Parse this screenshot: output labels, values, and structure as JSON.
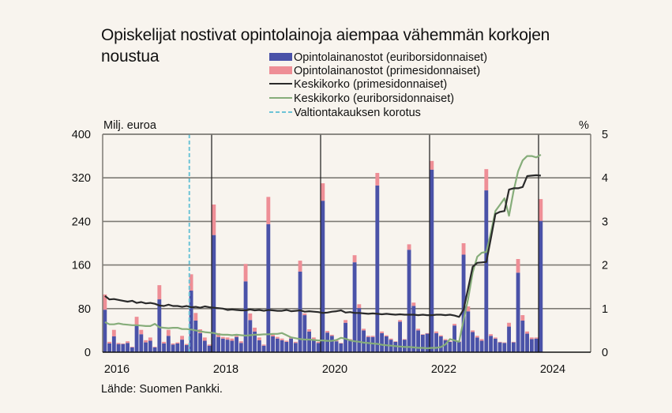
{
  "colors": {
    "background": "#F8F4EE",
    "euribor_bar": "#4A52A8",
    "prime_bar": "#EE8E96",
    "prime_rate_line": "#2a2a2a",
    "euribor_rate_line": "#86AD7A",
    "guarantee_line": "#6CC3D6",
    "grid": "#7d7a74"
  },
  "chart_data": {
    "type": "bar",
    "title_lines": [
      "Opiskelijat nostivat opintolainoja aiempaa vähemmän korkojen",
      "noustua"
    ],
    "ylabel_left": "Milj. euroa",
    "ylabel_right": "%",
    "ylim_left": [
      0,
      400
    ],
    "ylim_right": [
      0,
      5
    ],
    "yticks_left": [
      "0",
      "80",
      "160",
      "240",
      "320",
      "400"
    ],
    "yticks_right": [
      "0",
      "1",
      "2",
      "3",
      "4",
      "5"
    ],
    "xticks": [
      "2016",
      "2018",
      "2020",
      "2022",
      "2024"
    ],
    "x_start": "2016-01",
    "x_range_months": 108,
    "grid": true,
    "source": "Lähde: Suomen Pankki.",
    "legend": [
      {
        "label": "Opintolainanostot (euriborsidonnaiset)",
        "kind": "bar",
        "color_key": "euribor_bar"
      },
      {
        "label": "Opintolainanostot (primesidonnaiset)",
        "kind": "bar",
        "color_key": "prime_bar"
      },
      {
        "label": "Keskikorko (primesidonnaiset)",
        "kind": "line",
        "color_key": "prime_rate_line"
      },
      {
        "label": "Keskikorko (euriborsidonnaiset)",
        "kind": "line",
        "color_key": "euribor_rate_line"
      },
      {
        "label": "Valtiontakauksen korotus",
        "kind": "dashed",
        "color_key": "guarantee_line"
      }
    ],
    "guarantee_raise_month": "2017-08",
    "series": [
      {
        "name": "Opintolainanostot (euriborsidonnaiset)",
        "axis": "left",
        "type": "stacked-bar",
        "values": [
          78,
          16,
          29,
          15,
          15,
          17,
          9,
          49,
          33,
          18,
          21,
          9,
          97,
          16,
          30,
          14,
          16,
          23,
          13,
          113,
          58,
          35,
          21,
          12,
          215,
          28,
          25,
          23,
          21,
          28,
          17,
          130,
          59,
          38,
          22,
          12,
          235,
          29,
          25,
          22,
          19,
          25,
          17,
          148,
          68,
          38,
          24,
          17,
          278,
          36,
          30,
          20,
          16,
          54,
          22,
          165,
          81,
          40,
          28,
          28,
          306,
          35,
          29,
          23,
          19,
          56,
          23,
          188,
          85,
          40,
          32,
          34,
          335,
          35,
          29,
          22,
          19,
          49,
          19,
          179,
          75,
          37,
          27,
          21,
          297,
          30,
          25,
          18,
          17,
          47,
          18,
          146,
          58,
          34,
          24,
          25,
          241
        ]
      },
      {
        "name": "Opintolainanostot (primesidonnaiset)",
        "axis": "left",
        "type": "stacked-bar",
        "values": [
          28,
          3,
          12,
          2,
          1,
          3,
          1,
          16,
          8,
          4,
          6,
          1,
          26,
          3,
          11,
          2,
          2,
          7,
          2,
          30,
          14,
          7,
          6,
          2,
          56,
          7,
          3,
          4,
          4,
          2,
          3,
          32,
          12,
          7,
          5,
          2,
          50,
          3,
          3,
          3,
          2,
          3,
          2,
          20,
          3,
          4,
          3,
          2,
          32,
          3,
          2,
          2,
          1,
          5,
          2,
          13,
          7,
          3,
          2,
          2,
          23,
          3,
          2,
          2,
          1,
          3,
          1,
          10,
          6,
          3,
          1,
          1,
          16,
          3,
          2,
          2,
          1,
          3,
          1,
          21,
          9,
          3,
          3,
          3,
          39,
          3,
          2,
          1,
          1,
          7,
          1,
          25,
          10,
          4,
          3,
          2,
          40
        ]
      },
      {
        "name": "Keskikorko (primesidonnaiset)",
        "axis": "right",
        "type": "line",
        "values": [
          1.29,
          1.21,
          1.22,
          1.2,
          1.18,
          1.16,
          1.18,
          1.13,
          1.15,
          1.12,
          1.13,
          1.11,
          1.07,
          1.06,
          1.09,
          1.06,
          1.06,
          1.04,
          1.06,
          1.03,
          1.04,
          1.02,
          1.05,
          1.03,
          1.02,
          1.01,
          1.0,
          0.97,
          0.98,
          0.97,
          0.96,
          0.96,
          0.98,
          0.96,
          0.97,
          0.95,
          0.97,
          0.96,
          0.95,
          0.95,
          0.97,
          0.94,
          0.95,
          0.96,
          0.93,
          0.94,
          0.93,
          0.92,
          0.9,
          0.91,
          0.93,
          0.94,
          0.96,
          0.91,
          0.92,
          0.9,
          0.9,
          0.89,
          0.88,
          0.89,
          0.88,
          0.87,
          0.88,
          0.87,
          0.86,
          0.87,
          0.86,
          0.86,
          0.86,
          0.85,
          0.86,
          0.85,
          0.85,
          0.86,
          0.86,
          0.85,
          0.86,
          0.84,
          0.81,
          0.98,
          1.47,
          1.96,
          2.05,
          2.06,
          2.07,
          2.61,
          3.17,
          3.22,
          3.24,
          3.73,
          3.76,
          3.76,
          3.79,
          4.04,
          4.05,
          4.06,
          4.05
        ]
      },
      {
        "name": "Keskikorko (euriborsidonnaiset)",
        "axis": "right",
        "type": "line",
        "values": [
          0.69,
          0.64,
          0.64,
          0.66,
          0.64,
          0.63,
          0.62,
          0.62,
          0.61,
          0.6,
          0.6,
          0.65,
          0.57,
          0.56,
          0.55,
          0.56,
          0.56,
          0.53,
          0.53,
          0.52,
          0.5,
          0.48,
          0.46,
          0.45,
          0.44,
          0.41,
          0.4,
          0.4,
          0.39,
          0.4,
          0.39,
          0.38,
          0.39,
          0.4,
          0.4,
          0.41,
          0.41,
          0.42,
          0.42,
          0.44,
          0.39,
          0.34,
          0.32,
          0.3,
          0.29,
          0.29,
          0.28,
          0.27,
          0.27,
          0.26,
          0.26,
          0.28,
          0.33,
          0.31,
          0.27,
          0.25,
          0.24,
          0.22,
          0.21,
          0.2,
          0.19,
          0.17,
          0.16,
          0.15,
          0.14,
          0.13,
          0.12,
          0.12,
          0.11,
          0.1,
          0.1,
          0.09,
          0.1,
          0.1,
          0.12,
          0.18,
          0.3,
          0.27,
          0.24,
          0.74,
          1.23,
          1.83,
          2.19,
          2.28,
          2.3,
          2.74,
          3.24,
          3.38,
          3.53,
          3.13,
          3.7,
          4.15,
          4.4,
          4.5,
          4.5,
          4.47,
          4.53
        ]
      }
    ]
  }
}
